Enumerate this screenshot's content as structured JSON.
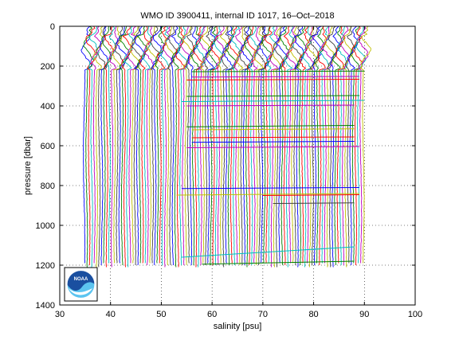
{
  "chart_data": {
    "type": "line",
    "title": "WMO ID 3900411, internal ID 1017, 16–Oct–2018",
    "xlabel": "salinity [psu]",
    "ylabel": "pressure [dbar]",
    "xlim": [
      30,
      100
    ],
    "ylim": [
      1400,
      0
    ],
    "y_reversed": true,
    "grid": "dotted",
    "x_ticks": [
      30,
      40,
      50,
      60,
      70,
      80,
      90,
      100
    ],
    "y_ticks": [
      0,
      200,
      400,
      600,
      800,
      1000,
      1200,
      1400
    ],
    "profile_offset_start": 34.8,
    "profile_offset_step": 0.5,
    "profile_count": 111,
    "series_colors": [
      "#0000ff",
      "#008000",
      "#ff0000",
      "#00bfbf",
      "#bf00bf",
      "#bfbf00",
      "#404040"
    ],
    "logo": {
      "label": "NOAA",
      "position": "bottom-left"
    }
  }
}
